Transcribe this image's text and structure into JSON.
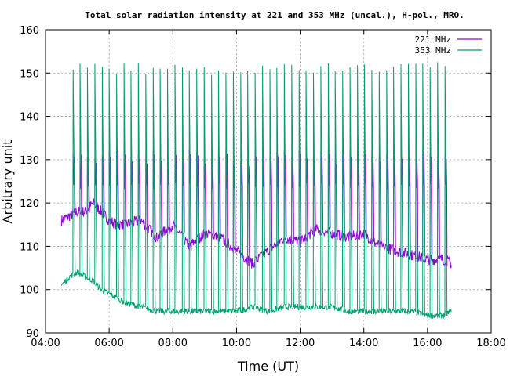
{
  "chart_data": {
    "type": "line",
    "title": "Total solar radiation intensity at 221 and 353 MHz (uncal.), H-pol., MRO.",
    "xlabel": "Time (UT)",
    "ylabel": "Arbitrary unit",
    "xlim": [
      "04:00",
      "18:00"
    ],
    "ylim": [
      90,
      160
    ],
    "x_ticks": [
      "04:00",
      "06:00",
      "08:00",
      "10:00",
      "12:00",
      "14:00",
      "16:00",
      "18:00"
    ],
    "y_ticks": [
      "90",
      "100",
      "110",
      "120",
      "130",
      "140",
      "150",
      "160"
    ],
    "grid": true,
    "legend_position": "top-right",
    "series": [
      {
        "name": "221 MHz",
        "color": "#9400d3",
        "baseline_x": [
          "04:30",
          "04:45",
          "05:00",
          "05:15",
          "05:30",
          "05:45",
          "06:00",
          "06:15",
          "06:30",
          "07:00",
          "07:30",
          "08:00",
          "08:30",
          "09:00",
          "09:30",
          "10:00",
          "10:30",
          "11:00",
          "11:30",
          "12:00",
          "12:30",
          "13:00",
          "13:30",
          "14:00",
          "14:30",
          "15:00",
          "15:30",
          "16:00",
          "16:30",
          "16:45"
        ],
        "baseline_y": [
          116,
          117,
          118,
          118,
          120,
          118,
          116,
          115,
          115,
          116,
          112,
          115,
          110,
          113,
          112,
          109,
          106,
          109,
          112,
          111,
          114,
          113,
          112,
          113,
          110,
          109,
          108,
          107,
          107,
          106
        ],
        "pulse_peak": 131,
        "pulse_base": 124
      },
      {
        "name": "353 MHz",
        "color": "#009e73",
        "baseline_x": [
          "04:30",
          "04:45",
          "05:00",
          "05:15",
          "05:30",
          "05:45",
          "06:00",
          "06:15",
          "06:30",
          "07:00",
          "07:30",
          "08:00",
          "08:30",
          "09:00",
          "09:30",
          "10:00",
          "10:30",
          "11:00",
          "11:30",
          "12:00",
          "12:30",
          "13:00",
          "13:30",
          "14:00",
          "14:30",
          "15:00",
          "15:30",
          "16:00",
          "16:30",
          "16:45"
        ],
        "baseline_y": [
          101,
          103,
          104,
          103,
          102,
          100,
          99,
          98,
          97,
          96,
          95,
          95,
          95,
          95,
          95,
          95,
          96,
          95,
          96,
          96,
          96,
          96,
          95,
          95,
          95,
          95,
          95,
          94,
          94,
          95
        ],
        "pulse_peak": 151
      }
    ],
    "pulse_times": [
      "04:38",
      "04:52",
      "05:05",
      "05:19",
      "05:33",
      "05:47",
      "06:00",
      "06:14",
      "06:28",
      "06:41",
      "06:55",
      "07:09",
      "07:23",
      "07:36",
      "07:50",
      "08:04",
      "08:18",
      "08:31",
      "08:45",
      "08:59",
      "09:13",
      "09:26",
      "09:40",
      "09:54",
      "10:08",
      "10:21",
      "10:35",
      "10:49",
      "11:03",
      "11:16",
      "11:30",
      "11:44",
      "11:58",
      "12:11",
      "12:25",
      "12:39",
      "12:53",
      "13:06",
      "13:20",
      "13:34",
      "13:48",
      "14:01",
      "14:15",
      "14:29",
      "14:43",
      "14:56",
      "15:10",
      "15:24",
      "15:38",
      "15:51",
      "16:05",
      "16:19",
      "16:33"
    ]
  }
}
